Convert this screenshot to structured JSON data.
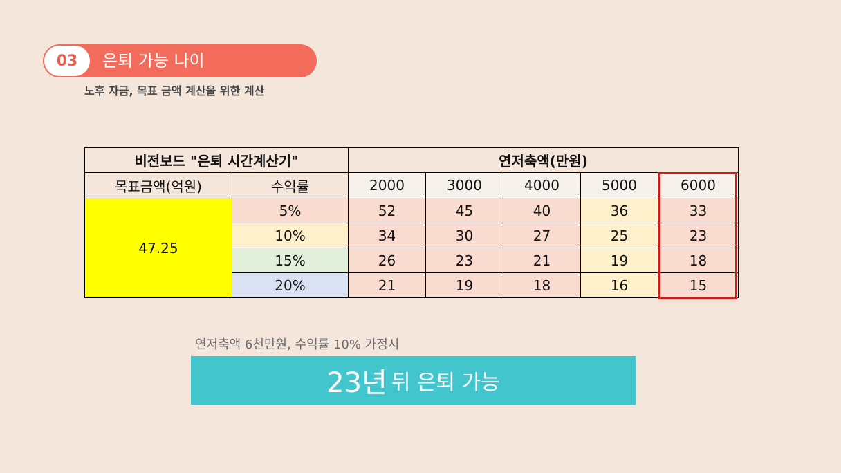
{
  "section": {
    "number": "03",
    "title": "은퇴 가능 나이",
    "subtitle": "노후 자금, 목표 금액 계산을 위한 계산"
  },
  "table": {
    "title": "비전보드 \"은퇴 시간계산기\"",
    "savings_header": "연저축액(만원)",
    "target_header": "목표금액(억원)",
    "rate_header": "수익률",
    "savings_amounts": [
      "2000",
      "3000",
      "4000",
      "5000",
      "6000"
    ],
    "target_value": "47.25",
    "rows": [
      {
        "rate": "5%",
        "years": [
          "52",
          "45",
          "40",
          "36",
          "33"
        ]
      },
      {
        "rate": "10%",
        "years": [
          "34",
          "30",
          "27",
          "25",
          "23"
        ]
      },
      {
        "rate": "15%",
        "years": [
          "26",
          "23",
          "21",
          "19",
          "18"
        ]
      },
      {
        "rate": "20%",
        "years": [
          "21",
          "19",
          "18",
          "16",
          "15"
        ]
      }
    ]
  },
  "assumption": "연저축액 6천만원, 수익률 10% 가정시",
  "result": {
    "years": "23년",
    "text": "뒤 은퇴 가능"
  },
  "colors": {
    "accent": "#f26b5b",
    "result_bg": "#43c5cd",
    "highlight": "#d11a1a",
    "target_bg": "#ffff00"
  }
}
